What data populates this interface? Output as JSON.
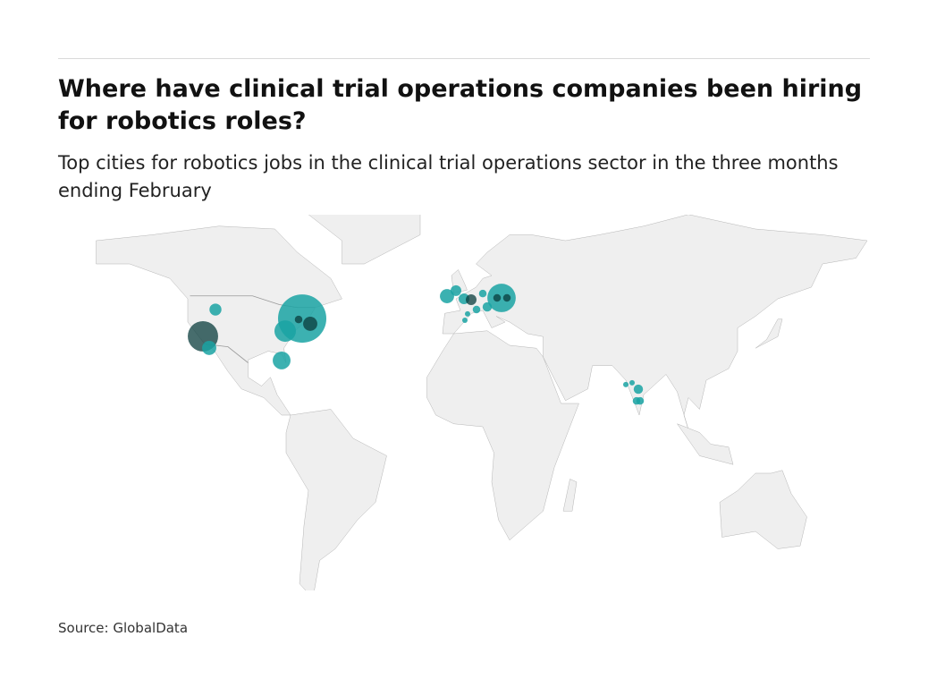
{
  "header": {
    "title": "Where have clinical trial operations companies been hiring for robotics roles?",
    "subtitle": "Top cities for robotics jobs in the clinical trial operations sector in the three months ending February"
  },
  "footer": {
    "source": "Source: GlobalData"
  },
  "chart_data": {
    "type": "bubble-map",
    "title": "Where have clinical trial operations companies been hiring for robotics roles?",
    "colors": {
      "bubble": "#1aa3a3",
      "bubble_dark": "#0a3c3c",
      "land": "#efefef",
      "borders": "#b5b5b5"
    },
    "points": [
      {
        "lon": -72.8,
        "lat": 41.2,
        "size": 81
      },
      {
        "lon": -80.4,
        "lat": 36.9,
        "size": 16
      },
      {
        "lon": -69.2,
        "lat": 39.4,
        "size": 7,
        "dark": true
      },
      {
        "lon": -74.4,
        "lat": 40.9,
        "size": 2,
        "dark": true
      },
      {
        "lon": -82.0,
        "lat": 26.8,
        "size": 11
      },
      {
        "lon": -111.6,
        "lat": 44.3,
        "size": 5
      },
      {
        "lon": -117.2,
        "lat": 35.1,
        "size": 32,
        "dark": true
      },
      {
        "lon": -114.4,
        "lat": 31.1,
        "size": 7
      },
      {
        "lon": -8.0,
        "lat": 48.9,
        "size": 7
      },
      {
        "lon": -4.0,
        "lat": 50.8,
        "size": 4
      },
      {
        "lon": -0.4,
        "lat": 48.0,
        "size": 4
      },
      {
        "lon": 2.8,
        "lat": 47.7,
        "size": 4,
        "dark": true
      },
      {
        "lon": 8.0,
        "lat": 49.8,
        "size": 2
      },
      {
        "lon": 16.4,
        "lat": 48.3,
        "size": 28
      },
      {
        "lon": 14.4,
        "lat": 48.3,
        "size": 2,
        "dark": true
      },
      {
        "lon": 18.8,
        "lat": 48.3,
        "size": 2,
        "dark": true
      },
      {
        "lon": 10.0,
        "lat": 45.2,
        "size": 3
      },
      {
        "lon": 5.2,
        "lat": 44.3,
        "size": 2
      },
      {
        "lon": 1.2,
        "lat": 42.8,
        "size": 1
      },
      {
        "lon": 0.0,
        "lat": 40.6,
        "size": 1
      },
      {
        "lon": 72.0,
        "lat": 18.5,
        "size": 1
      },
      {
        "lon": 74.8,
        "lat": 19.1,
        "size": 1
      },
      {
        "lon": 77.6,
        "lat": 16.9,
        "size": 3
      },
      {
        "lon": 78.4,
        "lat": 12.9,
        "size": 2
      },
      {
        "lon": 76.8,
        "lat": 12.9,
        "size": 2
      }
    ]
  }
}
